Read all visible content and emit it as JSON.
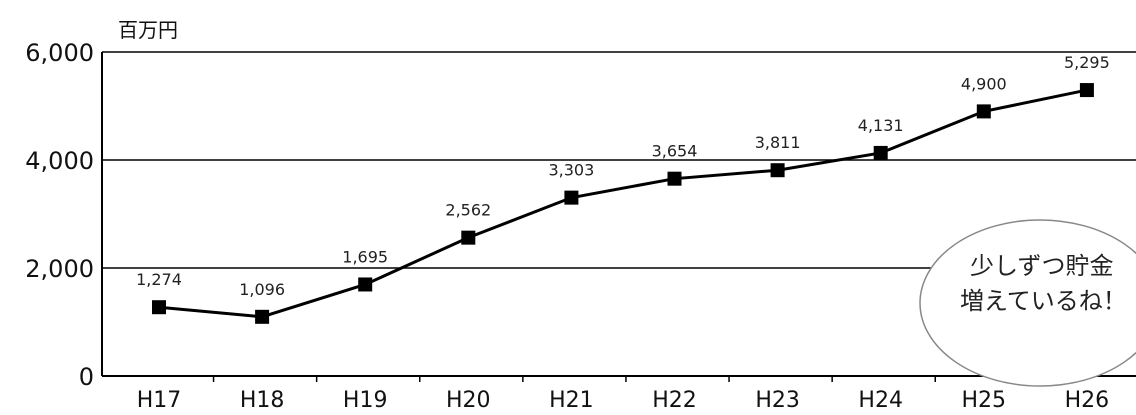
{
  "chart_data": {
    "type": "line",
    "unit_label": "百万円",
    "categories": [
      "H17",
      "H18",
      "H19",
      "H20",
      "H21",
      "H22",
      "H23",
      "H24",
      "H25",
      "H26"
    ],
    "values": [
      1274,
      1096,
      1695,
      2562,
      3303,
      3654,
      3811,
      4131,
      4900,
      5295
    ],
    "data_labels": [
      "1,274",
      "1,096",
      "1,695",
      "2,562",
      "3,303",
      "3,654",
      "3,811",
      "4,131",
      "4,900",
      "5,295"
    ],
    "ylim": [
      0,
      6000
    ],
    "yticks": [
      0,
      2000,
      4000,
      6000
    ],
    "ytick_labels": [
      "0",
      "2,000",
      "4,000",
      "6,000"
    ],
    "grid": "horizontal",
    "annotation": {
      "line1": "少しずつ貯金",
      "line2": "増えているね！"
    },
    "colors": {
      "line": "#000000",
      "marker": "#000000",
      "grid": "#000000",
      "bubble_border": "#888888"
    }
  }
}
